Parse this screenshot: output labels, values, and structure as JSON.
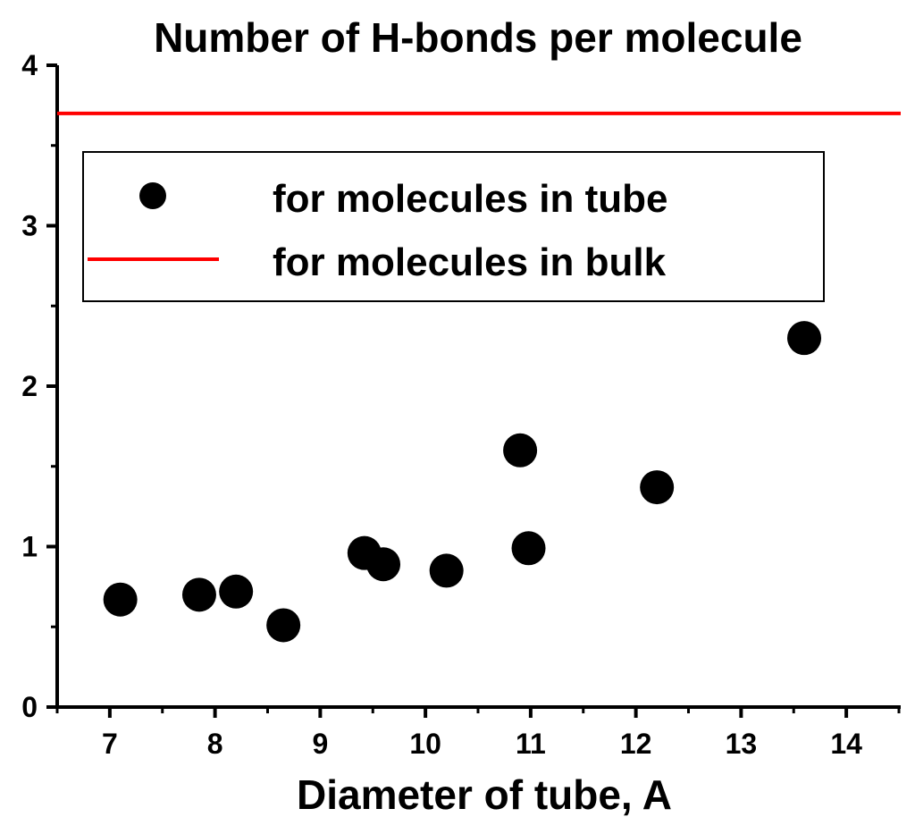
{
  "chart_data": {
    "type": "scatter",
    "title": "Number of H-bonds per molecule",
    "xlabel": "Diameter of tube, A",
    "ylabel": "",
    "xlim": [
      6.5,
      14.5
    ],
    "ylim": [
      0,
      4
    ],
    "x_ticks": [
      "7",
      "8",
      "9",
      "10",
      "11",
      "12",
      "13",
      "14"
    ],
    "y_ticks": [
      "0",
      "1",
      "2",
      "3",
      "4"
    ],
    "grid": false,
    "legend_position": "top",
    "series": [
      {
        "name": "for molecules in tube",
        "kind": "scatter",
        "color": "#000000",
        "points": [
          {
            "x": 7.1,
            "y": 0.67
          },
          {
            "x": 7.85,
            "y": 0.7
          },
          {
            "x": 8.2,
            "y": 0.72
          },
          {
            "x": 8.65,
            "y": 0.51
          },
          {
            "x": 9.42,
            "y": 0.96
          },
          {
            "x": 9.6,
            "y": 0.89
          },
          {
            "x": 10.2,
            "y": 0.85
          },
          {
            "x": 10.9,
            "y": 1.6
          },
          {
            "x": 10.98,
            "y": 0.99
          },
          {
            "x": 12.2,
            "y": 1.37
          },
          {
            "x": 13.6,
            "y": 2.3
          }
        ]
      },
      {
        "name": "for molecules in bulk",
        "kind": "line",
        "color": "#ff0000",
        "y": 3.7
      }
    ]
  }
}
